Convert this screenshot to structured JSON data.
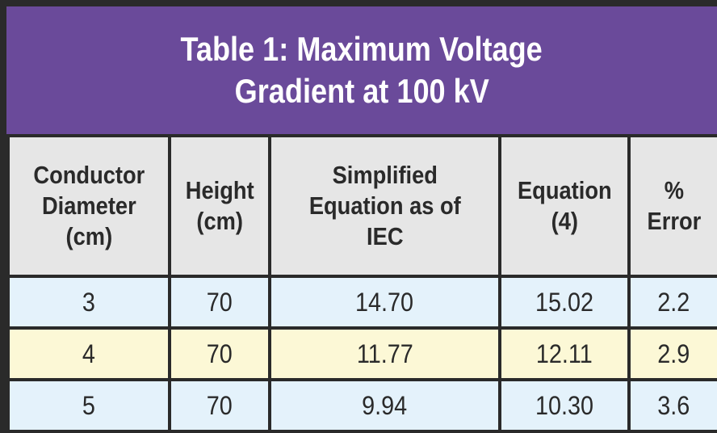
{
  "title": {
    "line1": "Table 1: Maximum Voltage",
    "line2": "Gradient at 100 kV"
  },
  "headers": [
    [
      "Conductor",
      "Diameter",
      "(cm)"
    ],
    [
      "Height",
      "(cm)"
    ],
    [
      "Simplified",
      "Equation as of",
      "IEC"
    ],
    [
      "Equation",
      "(4)"
    ],
    [
      "%",
      "Error"
    ]
  ],
  "rows": [
    [
      "3",
      "70",
      "14.70",
      "15.02",
      "2.2"
    ],
    [
      "4",
      "70",
      "11.77",
      "12.11",
      "2.9"
    ],
    [
      "5",
      "70",
      "9.94",
      "10.30",
      "3.6"
    ]
  ],
  "colors": {
    "title_bg": "#6a4a9a",
    "header_bg": "#e6e6e6",
    "row_blue": "#e4f2fb",
    "row_yellow": "#fcf8d6",
    "border": "#2a2a2a"
  }
}
